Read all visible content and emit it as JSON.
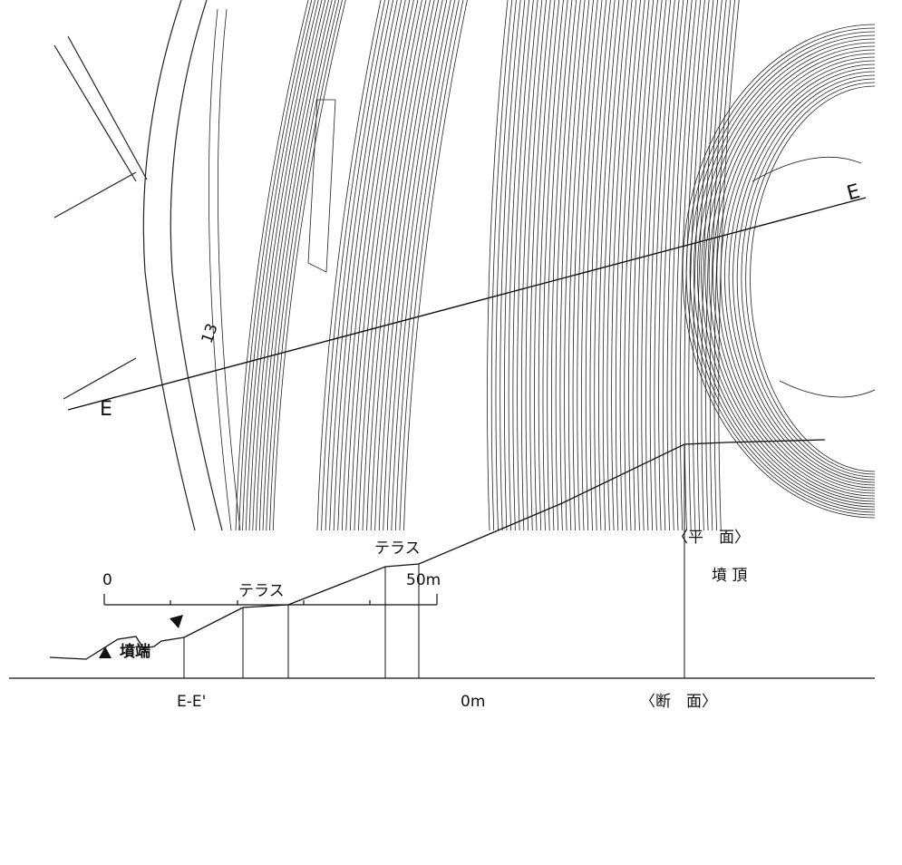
{
  "plan": {
    "caption": "〈平　面〉",
    "section_line_labels": [
      "E",
      "E"
    ],
    "grid_label": "13"
  },
  "scale_bar": {
    "start": "0",
    "end": "50m"
  },
  "legend": {
    "label": "墳端"
  },
  "section": {
    "caption": "〈断　面〉",
    "line_label": "E-E'",
    "baseline_label": "0m",
    "top_label": "墳 頂",
    "terrace_labels": [
      "テラス",
      "テラス"
    ]
  }
}
